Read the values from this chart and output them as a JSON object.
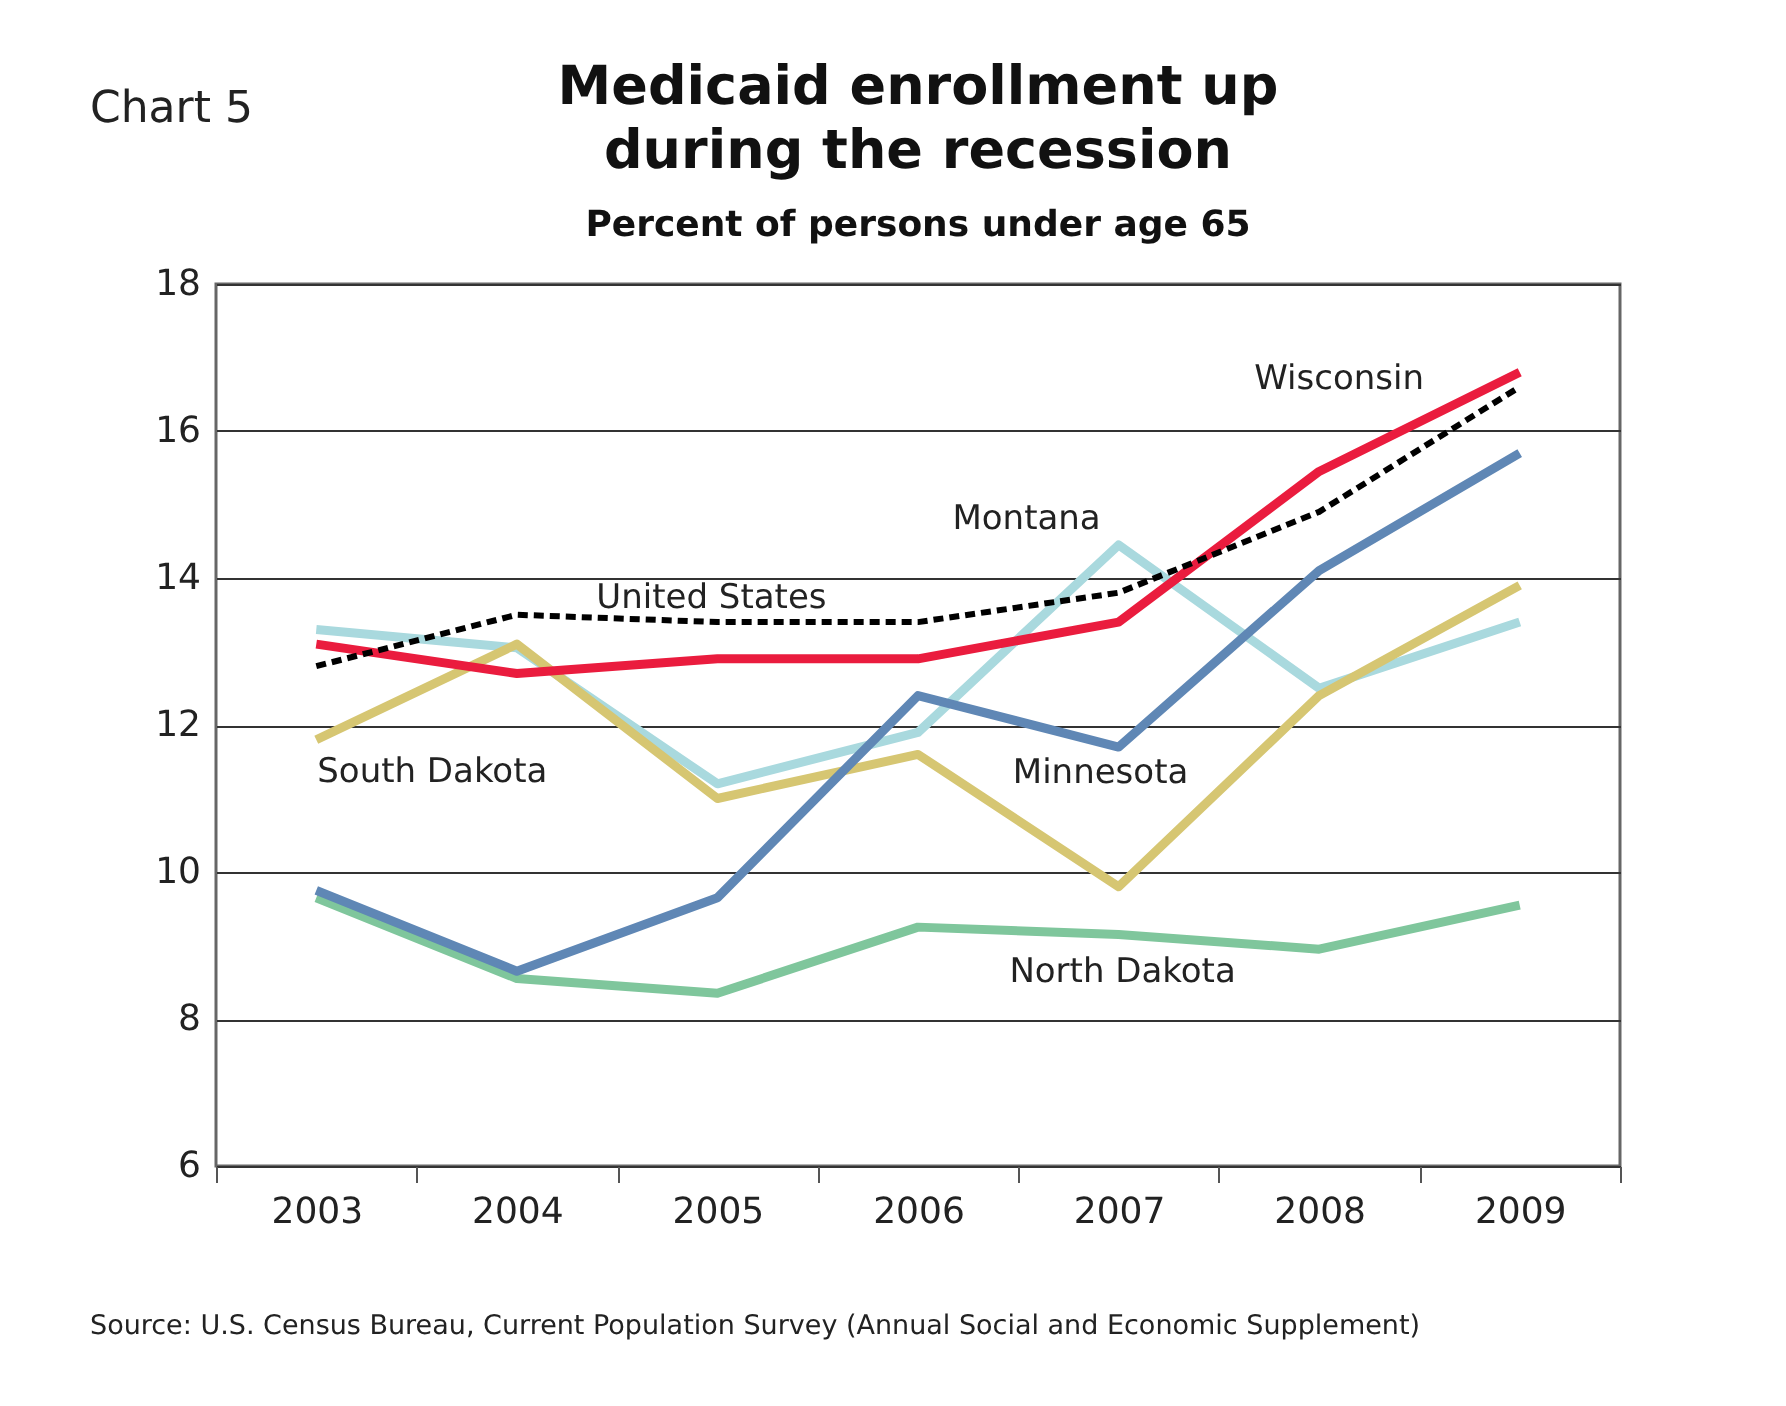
{
  "chart_data": {
    "type": "line",
    "title": "Medicaid enrollment up during the recession",
    "subtitle": "Percent of persons under age 65",
    "annotations": [
      "Chart 5",
      "Source: U.S. Census Bureau, Current Population Survey (Annual Social and Economic Supplement)"
    ],
    "categories": [
      "2003",
      "2004",
      "2005",
      "2006",
      "2007",
      "2008",
      "2009"
    ],
    "ylim": [
      6,
      18
    ],
    "yticks": [
      6,
      8,
      10,
      12,
      14,
      16,
      18
    ],
    "grid": "y",
    "line_style": "solid",
    "series": [
      {
        "name": "Montana",
        "color": "#a9d9de",
        "values": [
          13.3,
          13.05,
          11.2,
          11.9,
          14.45,
          12.5,
          13.4
        ]
      },
      {
        "name": "South Dakota",
        "color": "#d6c672",
        "values": [
          11.8,
          13.1,
          11.0,
          11.6,
          9.8,
          12.4,
          13.9
        ]
      },
      {
        "name": "North Dakota",
        "color": "#7fc69c",
        "values": [
          9.65,
          8.55,
          8.35,
          9.25,
          9.15,
          8.95,
          9.55
        ]
      },
      {
        "name": "Minnesota",
        "color": "#5f87b5",
        "values": [
          9.75,
          8.65,
          9.65,
          12.4,
          11.7,
          14.1,
          15.7
        ]
      },
      {
        "name": "Wisconsin",
        "color": "#ea1c3e",
        "values": [
          13.1,
          12.7,
          12.9,
          12.9,
          13.4,
          15.45,
          16.8
        ]
      },
      {
        "name": "United States",
        "color": "#000000",
        "line_style": "dashed",
        "values": [
          12.8,
          13.5,
          13.4,
          13.4,
          13.8,
          14.9,
          16.6
        ]
      }
    ]
  }
}
